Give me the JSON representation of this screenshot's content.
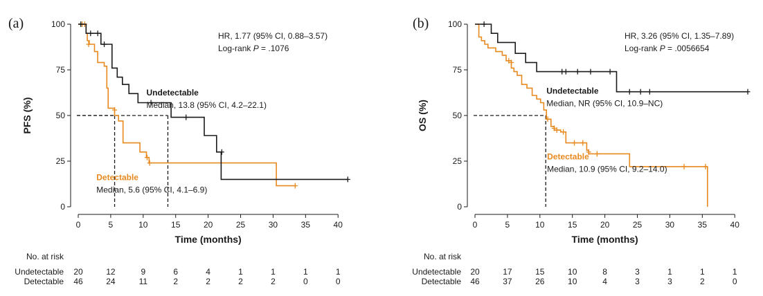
{
  "chart_data": [
    {
      "type": "line",
      "panel_label": "(a)",
      "ylabel": "PFS (%)",
      "xlabel": "Time (months)",
      "xlim": [
        0,
        42
      ],
      "ylim": [
        0,
        100
      ],
      "x_ticks": [
        0,
        5,
        10,
        15,
        20,
        25,
        30,
        35,
        40
      ],
      "y_ticks": [
        0,
        25,
        50,
        75,
        100
      ],
      "stats": {
        "hr": "HR, 1.77 (95% CI, 0.88–3.57)",
        "logrank_prefix": "Log-rank ",
        "logrank_p": "P",
        "logrank_value": " = .1076"
      },
      "median_lines": [
        5.6,
        13.8
      ],
      "series": [
        {
          "name": "Undetectable",
          "median_label": "Median, 13.8 (95% CI, 4.2–22.1)",
          "color": "#1a1a1a",
          "label_pos": [
            10.5,
            61
          ],
          "steps": [
            [
              0,
              100
            ],
            [
              1.2,
              100
            ],
            [
              1.2,
              95
            ],
            [
              3.5,
              95
            ],
            [
              3.5,
              89
            ],
            [
              5.2,
              89
            ],
            [
              5.2,
              76
            ],
            [
              6,
              76
            ],
            [
              6,
              71
            ],
            [
              6.8,
              71
            ],
            [
              6.8,
              67
            ],
            [
              7.8,
              67
            ],
            [
              7.8,
              62
            ],
            [
              9.2,
              62
            ],
            [
              9.2,
              57
            ],
            [
              14.3,
              57
            ],
            [
              14.3,
              49
            ],
            [
              19.4,
              49
            ],
            [
              19.4,
              39
            ],
            [
              21.3,
              39
            ],
            [
              21.3,
              30
            ],
            [
              22,
              30
            ],
            [
              22,
              15
            ],
            [
              41.5,
              15
            ]
          ],
          "censors": [
            [
              0.4,
              100
            ],
            [
              1.9,
              95
            ],
            [
              3,
              95
            ],
            [
              4,
              89
            ],
            [
              11.2,
              57
            ],
            [
              16.6,
              49
            ],
            [
              22.1,
              30
            ],
            [
              41.5,
              15
            ]
          ]
        },
        {
          "name": "Detectable",
          "median_label": "Median, 5.6 (95% CI, 4.1–6.9)",
          "color": "#e8891e",
          "label_pos": [
            2.8,
            14.5
          ],
          "steps": [
            [
              0,
              100
            ],
            [
              1.2,
              100
            ],
            [
              1.2,
              95
            ],
            [
              1.4,
              95
            ],
            [
              1.4,
              91
            ],
            [
              1.7,
              91
            ],
            [
              1.7,
              89
            ],
            [
              2.5,
              89
            ],
            [
              2.5,
              85
            ],
            [
              3,
              85
            ],
            [
              3,
              79
            ],
            [
              4,
              79
            ],
            [
              4,
              77
            ],
            [
              4.4,
              77
            ],
            [
              4.4,
              65
            ],
            [
              4.6,
              65
            ],
            [
              4.6,
              54
            ],
            [
              5.6,
              54
            ],
            [
              5.6,
              50
            ],
            [
              6.2,
              50
            ],
            [
              6.2,
              47
            ],
            [
              6.9,
              47
            ],
            [
              6.9,
              35
            ],
            [
              8.3,
              35
            ],
            [
              8.3,
              35
            ],
            [
              9.5,
              35
            ],
            [
              9.5,
              30
            ],
            [
              10.5,
              30
            ],
            [
              10.5,
              27
            ],
            [
              10.9,
              27
            ],
            [
              10.9,
              24
            ],
            [
              30.5,
              24
            ],
            [
              30.5,
              11.5
            ],
            [
              33.4,
              11.5
            ]
          ],
          "censors": [
            [
              0.6,
              100
            ],
            [
              1,
              100
            ],
            [
              1.6,
              89
            ],
            [
              5.6,
              53
            ],
            [
              10.6,
              27
            ],
            [
              11,
              24
            ],
            [
              33.4,
              11.5
            ]
          ]
        }
      ],
      "risk_table": {
        "header": "No. at risk",
        "rows": [
          {
            "name": "Undetectable",
            "values": [
              "20",
              "12",
              "9",
              "6",
              "4",
              "1",
              "1",
              "1",
              "1"
            ]
          },
          {
            "name": "Detectable",
            "values": [
              "46",
              "24",
              "11",
              "2",
              "2",
              "2",
              "2",
              "0",
              "0"
            ]
          }
        ]
      }
    },
    {
      "type": "line",
      "panel_label": "(b)",
      "ylabel": "OS (%)",
      "xlabel": "Time (months)",
      "xlim": [
        0,
        42
      ],
      "ylim": [
        0,
        100
      ],
      "x_ticks": [
        0,
        5,
        10,
        15,
        20,
        25,
        30,
        35,
        40
      ],
      "y_ticks": [
        0,
        25,
        50,
        75,
        100
      ],
      "stats": {
        "hr": "HR, 3.26 (95% CI, 1.35–7.89)",
        "logrank_prefix": "Log-rank ",
        "logrank_p": "P",
        "logrank_value": " = .0056654"
      },
      "median_lines": [
        10.9
      ],
      "series": [
        {
          "name": "Undetectable",
          "median_label": "Median, NR (95% CI, 10.9–NC)",
          "color": "#1a1a1a",
          "label_pos": [
            11,
            62
          ],
          "steps": [
            [
              0,
              100
            ],
            [
              2.5,
              100
            ],
            [
              2.5,
              95
            ],
            [
              3.5,
              95
            ],
            [
              3.5,
              90
            ],
            [
              6.2,
              90
            ],
            [
              6.2,
              84
            ],
            [
              7.8,
              84
            ],
            [
              7.8,
              79
            ],
            [
              9.5,
              79
            ],
            [
              9.5,
              74
            ],
            [
              21.8,
              74
            ],
            [
              21.8,
              63
            ],
            [
              42,
              63
            ]
          ],
          "censors": [
            [
              1.4,
              100
            ],
            [
              13.4,
              74
            ],
            [
              14,
              74
            ],
            [
              15.8,
              74
            ],
            [
              17.8,
              74
            ],
            [
              20.8,
              74
            ],
            [
              23.8,
              63
            ],
            [
              25.5,
              63
            ],
            [
              26.9,
              63
            ],
            [
              42,
              63
            ]
          ]
        },
        {
          "name": "Detectable",
          "median_label": "Median, 10.9 (95% CI, 9.2–14.0)",
          "color": "#e8891e",
          "label_pos": [
            11.1,
            26
          ],
          "steps": [
            [
              0,
              100
            ],
            [
              0.6,
              100
            ],
            [
              0.6,
              93
            ],
            [
              1,
              93
            ],
            [
              1,
              91
            ],
            [
              1.5,
              91
            ],
            [
              1.5,
              89
            ],
            [
              2,
              89
            ],
            [
              2,
              87
            ],
            [
              3.2,
              87
            ],
            [
              3.2,
              85
            ],
            [
              4.2,
              85
            ],
            [
              4.2,
              83
            ],
            [
              4.8,
              83
            ],
            [
              4.8,
              80
            ],
            [
              5.6,
              80
            ],
            [
              5.6,
              76
            ],
            [
              6,
              76
            ],
            [
              6,
              74
            ],
            [
              6.5,
              74
            ],
            [
              6.5,
              72
            ],
            [
              7.2,
              72
            ],
            [
              7.2,
              67
            ],
            [
              8,
              67
            ],
            [
              8,
              65
            ],
            [
              8.8,
              65
            ],
            [
              8.8,
              61
            ],
            [
              9.5,
              61
            ],
            [
              9.5,
              59
            ],
            [
              10.1,
              59
            ],
            [
              10.1,
              57
            ],
            [
              10.6,
              57
            ],
            [
              10.6,
              53
            ],
            [
              11,
              53
            ],
            [
              11,
              48
            ],
            [
              11.7,
              48
            ],
            [
              11.7,
              44
            ],
            [
              12.2,
              44
            ],
            [
              12.2,
              42
            ],
            [
              13.2,
              42
            ],
            [
              13.2,
              41
            ],
            [
              14,
              41
            ],
            [
              14,
              35
            ],
            [
              17.2,
              35
            ],
            [
              17.2,
              31
            ],
            [
              17.5,
              31
            ],
            [
              17.5,
              29
            ],
            [
              23.8,
              29
            ],
            [
              23.8,
              22
            ],
            [
              35.8,
              22
            ],
            [
              35.8,
              0
            ]
          ],
          "censors": [
            [
              5.2,
              80
            ],
            [
              5.6,
              79
            ],
            [
              11.2,
              48
            ],
            [
              12.2,
              43
            ],
            [
              12.6,
              42
            ],
            [
              13.6,
              41
            ],
            [
              15.3,
              35
            ],
            [
              16.6,
              35
            ],
            [
              17.5,
              30
            ],
            [
              18.8,
              29
            ],
            [
              32.2,
              22
            ],
            [
              35.5,
              22
            ]
          ]
        }
      ],
      "risk_table": {
        "header": "No. at risk",
        "rows": [
          {
            "name": "Undetectable",
            "values": [
              "20",
              "17",
              "15",
              "10",
              "8",
              "3",
              "1",
              "1",
              "1"
            ]
          },
          {
            "name": "Detectable",
            "values": [
              "46",
              "37",
              "26",
              "10",
              "4",
              "3",
              "3",
              "2",
              "0"
            ]
          }
        ]
      }
    }
  ]
}
